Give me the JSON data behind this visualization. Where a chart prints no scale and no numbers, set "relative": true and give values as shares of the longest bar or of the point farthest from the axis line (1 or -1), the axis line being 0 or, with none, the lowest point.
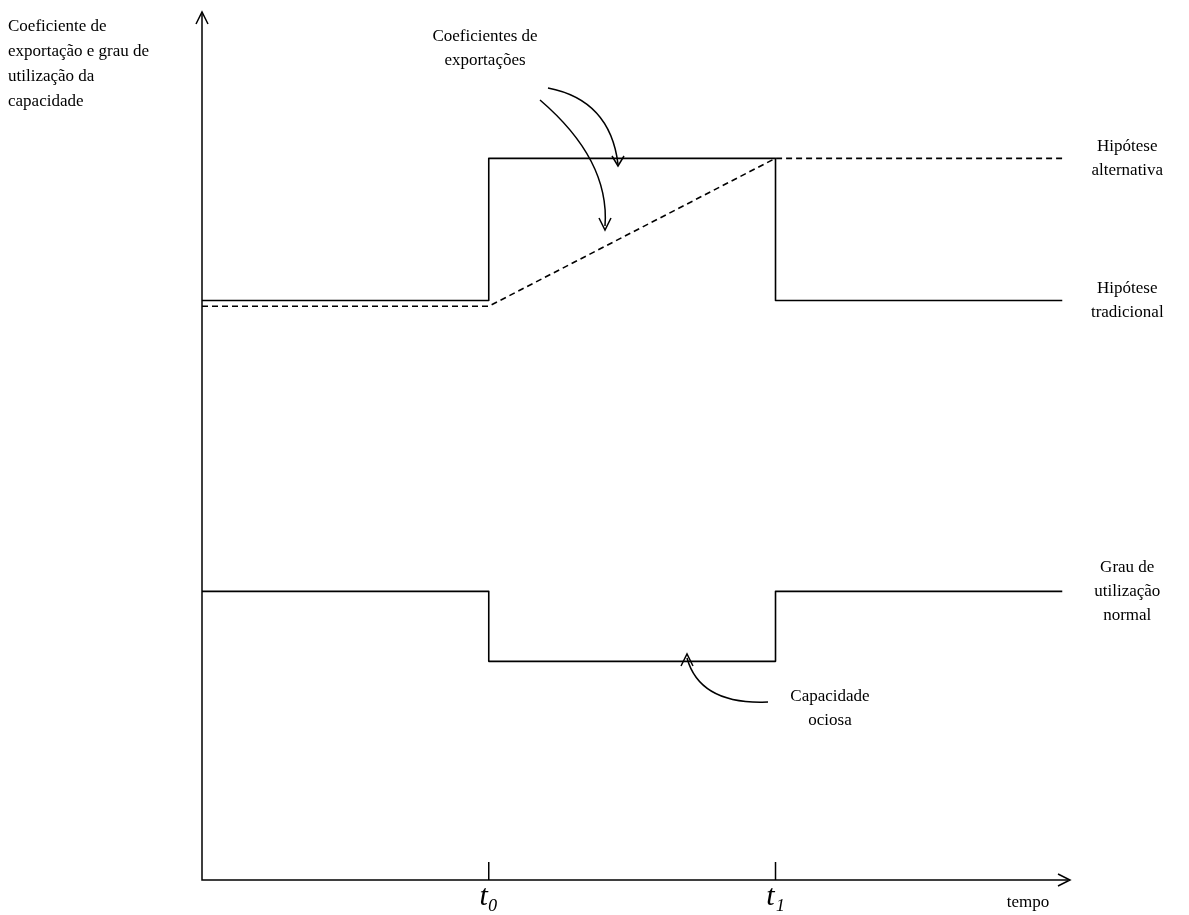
{
  "chart_data": {
    "type": "line",
    "relative": true,
    "xlabel": "tempo",
    "ylabel": "Coeficiente de exportação e grau de utilização da capacidade",
    "categories": [
      null,
      "t₀",
      "t₁",
      null
    ],
    "series": [
      {
        "name": "Hipótese tradicional",
        "type": "step",
        "color": "#000000",
        "line_style": "solid",
        "values": [
          0.803,
          1,
          0.803,
          0.803
        ]
      },
      {
        "name": "Hipótese alternativa",
        "type": "line",
        "color": "#000000",
        "line_style": "dashed",
        "values": [
          0.795,
          0.795,
          1,
          1
        ]
      },
      {
        "name": "Grau de utilização normal",
        "type": "step",
        "color": "#000000",
        "line_style": "solid",
        "values": [
          0.4,
          0.303,
          0.4,
          0.4
        ]
      }
    ],
    "annotations": [
      "Coeficientes de exportações",
      "Capacidade ociosa"
    ],
    "legend": false,
    "grid": false,
    "marker": "none"
  }
}
